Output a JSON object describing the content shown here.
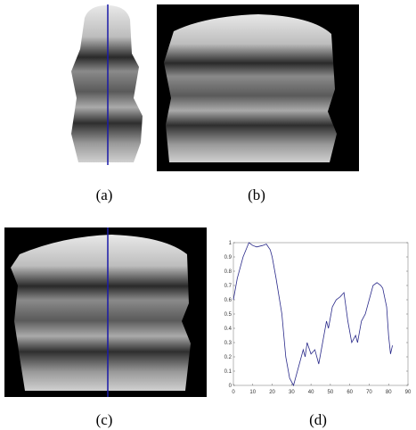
{
  "panels": [
    {
      "caption": "(a)"
    },
    {
      "caption": "(b)"
    },
    {
      "caption": "(c)"
    },
    {
      "caption": "(d)"
    }
  ],
  "chart_data": {
    "type": "line",
    "x": [
      0,
      2,
      5,
      8,
      10,
      12,
      15,
      17,
      19,
      20,
      22,
      25,
      27,
      29,
      31,
      32,
      34,
      36,
      37,
      38,
      40,
      42,
      44,
      46,
      48,
      49,
      51,
      53,
      55,
      57,
      59,
      61,
      63,
      64,
      66,
      68,
      70,
      72,
      74,
      76,
      77,
      79,
      80,
      81,
      82
    ],
    "series": [
      {
        "color": "#2a2a8a",
        "values": [
          0.6,
          0.75,
          0.9,
          1.0,
          0.98,
          0.97,
          0.98,
          0.99,
          0.95,
          0.9,
          0.75,
          0.5,
          0.2,
          0.05,
          0.0,
          0.05,
          0.15,
          0.25,
          0.2,
          0.3,
          0.22,
          0.25,
          0.15,
          0.3,
          0.45,
          0.4,
          0.55,
          0.6,
          0.62,
          0.65,
          0.45,
          0.3,
          0.35,
          0.3,
          0.45,
          0.5,
          0.6,
          0.7,
          0.72,
          0.7,
          0.68,
          0.55,
          0.35,
          0.22,
          0.28
        ]
      }
    ],
    "xlim": [
      0,
      90
    ],
    "xticks": [
      0,
      10,
      20,
      30,
      40,
      50,
      60,
      70,
      80,
      90
    ],
    "ylim": [
      0,
      1
    ],
    "yticks": [
      0,
      0.1,
      0.2,
      0.3,
      0.4,
      0.5,
      0.6,
      0.7,
      0.8,
      0.9,
      1
    ]
  }
}
